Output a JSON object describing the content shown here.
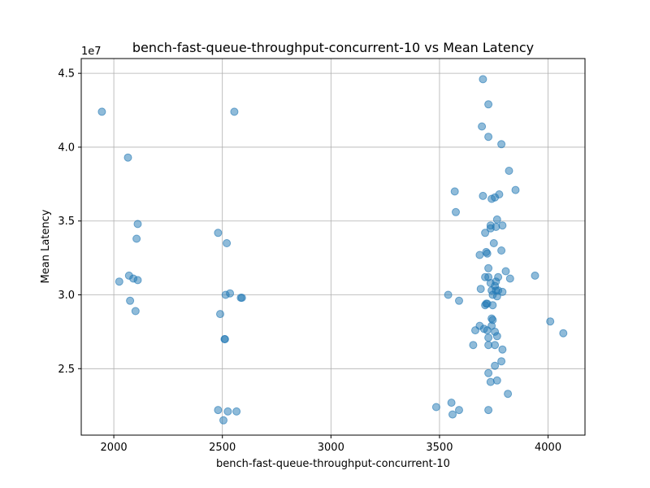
{
  "chart_data": {
    "type": "scatter",
    "title": "bench-fast-queue-throughput-concurrent-10 vs Mean Latency",
    "xlabel": "bench-fast-queue-throughput-concurrent-10",
    "ylabel": "Mean Latency",
    "y_offset_label": "1e7",
    "xlim": [
      1850,
      4170
    ],
    "ylim": [
      20500000.0,
      46000000.0
    ],
    "x_ticks": [
      2000,
      2500,
      3000,
      3500,
      4000
    ],
    "x_tick_labels": [
      "2000",
      "2500",
      "3000",
      "3500",
      "4000"
    ],
    "y_ticks": [
      25000000.0,
      30000000.0,
      35000000.0,
      40000000.0,
      45000000.0
    ],
    "y_tick_labels": [
      "2.5",
      "3.0",
      "3.5",
      "4.0",
      "4.5"
    ],
    "grid": true,
    "color": "#1f77b4",
    "points": [
      [
        1945,
        42400000.0
      ],
      [
        2065,
        39300000.0
      ],
      [
        2110,
        34800000.0
      ],
      [
        2105,
        33800000.0
      ],
      [
        2025,
        30900000.0
      ],
      [
        2070,
        31300000.0
      ],
      [
        2090,
        31100000.0
      ],
      [
        2110,
        31000000.0
      ],
      [
        2075,
        29600000.0
      ],
      [
        2100,
        28900000.0
      ],
      [
        2555,
        42400000.0
      ],
      [
        2480,
        34200000.0
      ],
      [
        2520,
        33500000.0
      ],
      [
        2515,
        30000000.0
      ],
      [
        2535,
        30100000.0
      ],
      [
        2585,
        29800000.0
      ],
      [
        2590,
        29800000.0
      ],
      [
        2490,
        28700000.0
      ],
      [
        2510,
        27000000.0
      ],
      [
        2512,
        27000000.0
      ],
      [
        2480,
        22200000.0
      ],
      [
        2525,
        22100000.0
      ],
      [
        2565,
        22100000.0
      ],
      [
        2505,
        21500000.0
      ],
      [
        3700,
        44600000.0
      ],
      [
        3725,
        42900000.0
      ],
      [
        3695,
        41400000.0
      ],
      [
        3725,
        40700000.0
      ],
      [
        3785,
        40200000.0
      ],
      [
        3820,
        38400000.0
      ],
      [
        3850,
        37100000.0
      ],
      [
        3570,
        37000000.0
      ],
      [
        3700,
        36700000.0
      ],
      [
        3775,
        36800000.0
      ],
      [
        3740,
        36500000.0
      ],
      [
        3755,
        36600000.0
      ],
      [
        3575,
        35600000.0
      ],
      [
        3765,
        35100000.0
      ],
      [
        3735,
        34700000.0
      ],
      [
        3790,
        34700000.0
      ],
      [
        3735,
        34500000.0
      ],
      [
        3760,
        34600000.0
      ],
      [
        3710,
        34200000.0
      ],
      [
        3750,
        33500000.0
      ],
      [
        3785,
        33000000.0
      ],
      [
        3715,
        32900000.0
      ],
      [
        3720,
        32800000.0
      ],
      [
        3685,
        32700000.0
      ],
      [
        3725,
        31800000.0
      ],
      [
        3805,
        31600000.0
      ],
      [
        3710,
        31200000.0
      ],
      [
        3725,
        31200000.0
      ],
      [
        3770,
        31200000.0
      ],
      [
        3825,
        31100000.0
      ],
      [
        3940,
        31300000.0
      ],
      [
        3735,
        30800000.0
      ],
      [
        3760,
        30900000.0
      ],
      [
        3755,
        30600000.0
      ],
      [
        3690,
        30400000.0
      ],
      [
        3740,
        30300000.0
      ],
      [
        3760,
        30300000.0
      ],
      [
        3770,
        30300000.0
      ],
      [
        3790,
        30200000.0
      ],
      [
        3540,
        30000000.0
      ],
      [
        3745,
        30000000.0
      ],
      [
        3765,
        29900000.0
      ],
      [
        3590,
        29600000.0
      ],
      [
        3715,
        29400000.0
      ],
      [
        3720,
        29400000.0
      ],
      [
        3710,
        29300000.0
      ],
      [
        3745,
        29300000.0
      ],
      [
        3740,
        28400000.0
      ],
      [
        3745,
        28300000.0
      ],
      [
        4010,
        28200000.0
      ],
      [
        4070,
        27400000.0
      ],
      [
        3685,
        27900000.0
      ],
      [
        3740,
        27900000.0
      ],
      [
        3705,
        27700000.0
      ],
      [
        3665,
        27600000.0
      ],
      [
        3720,
        27600000.0
      ],
      [
        3755,
        27500000.0
      ],
      [
        3725,
        27100000.0
      ],
      [
        3765,
        27200000.0
      ],
      [
        3655,
        26600000.0
      ],
      [
        3725,
        26600000.0
      ],
      [
        3755,
        26600000.0
      ],
      [
        3790,
        26300000.0
      ],
      [
        3785,
        25500000.0
      ],
      [
        3755,
        25200000.0
      ],
      [
        3725,
        24700000.0
      ],
      [
        3765,
        24200000.0
      ],
      [
        3735,
        24100000.0
      ],
      [
        3815,
        23300000.0
      ],
      [
        3555,
        22700000.0
      ],
      [
        3485,
        22400000.0
      ],
      [
        3590,
        22200000.0
      ],
      [
        3725,
        22200000.0
      ],
      [
        3560,
        21900000.0
      ]
    ]
  }
}
